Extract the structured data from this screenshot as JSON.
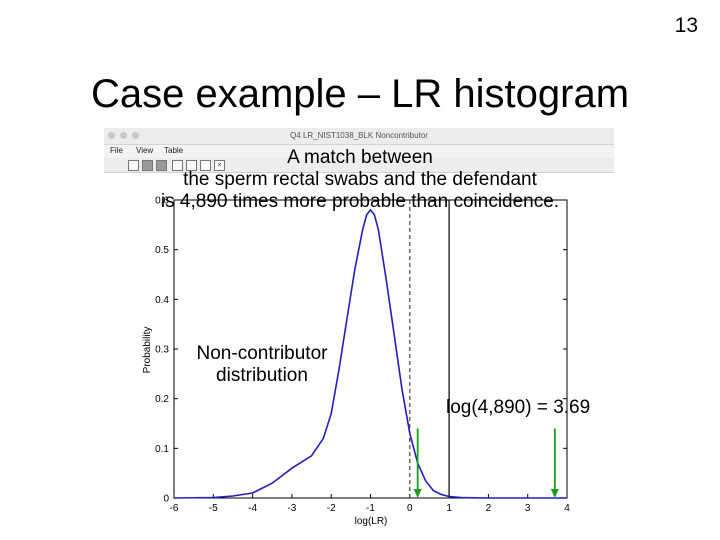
{
  "slide": {
    "number": "13",
    "title": "Case example – LR histogram"
  },
  "window": {
    "title": "Q4 LR_NIST1038_BLK Noncontributor",
    "menus": [
      "File",
      "View",
      "Table"
    ],
    "toolbar_icons": [
      "new-file-icon",
      "open-icon",
      "save-icon",
      "print-icon",
      "zoom-icon",
      "pan-icon",
      "close-icon"
    ]
  },
  "annotations": {
    "match_line1": "A match between",
    "match_line2": "the sperm rectal swabs and the defendant",
    "match_line3": "is 4,890 times more probable than coincidence.",
    "noncontrib_line1": "Non-contributor",
    "noncontrib_line2": "distribution",
    "log_value": "log(4,890) = 3.69"
  },
  "chart_data": {
    "type": "line",
    "xlabel": "log(LR)",
    "ylabel": "Probability",
    "xlim": [
      -6,
      4
    ],
    "ylim": [
      0,
      0.6
    ],
    "x_ticks": [
      -6,
      -5,
      -4,
      -3,
      -2,
      -1,
      0,
      1,
      2,
      3,
      4
    ],
    "y_ticks": [
      0,
      0.1,
      0.2,
      0.3,
      0.4,
      0.5,
      0.6
    ],
    "y_tick_labels": [
      "0",
      "0.1",
      "0.2",
      "0.3",
      "0.4",
      "0.5",
      "0.6"
    ],
    "top_partial_tick": "0.6",
    "series": [
      {
        "x": [
          -6,
          -5,
          -4.5,
          -4,
          -3.5,
          -3,
          -2.8,
          -2.5,
          -2.2,
          -2,
          -1.8,
          -1.6,
          -1.4,
          -1.2,
          -1.1,
          -1,
          -0.9,
          -0.8,
          -0.6,
          -0.4,
          -0.2,
          0,
          0.2,
          0.4,
          0.6,
          0.8,
          1,
          1.3,
          1.6,
          2,
          3,
          4
        ],
        "y": [
          0,
          0.001,
          0.004,
          0.01,
          0.03,
          0.06,
          0.07,
          0.085,
          0.12,
          0.17,
          0.26,
          0.36,
          0.46,
          0.54,
          0.57,
          0.58,
          0.57,
          0.54,
          0.44,
          0.33,
          0.22,
          0.13,
          0.07,
          0.035,
          0.015,
          0.007,
          0.003,
          0.001,
          0.0005,
          0,
          0,
          0
        ],
        "color": "#1f1fbf"
      }
    ],
    "reference_lines": [
      {
        "x": 0,
        "style": "dashed",
        "color": "#444444"
      },
      {
        "x": 1,
        "style": "solid",
        "color": "#000000"
      }
    ],
    "arrows": [
      {
        "x": 0.2,
        "color": "#1a9e1a"
      },
      {
        "x": 3.69,
        "color": "#1a9e1a"
      }
    ]
  }
}
